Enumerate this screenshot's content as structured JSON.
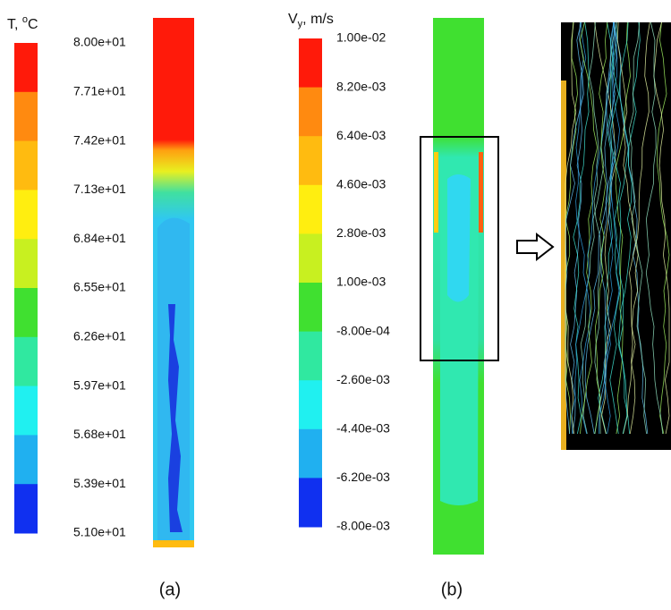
{
  "panels": [
    {
      "title_parts": [
        "T, ",
        "o",
        "C"
      ],
      "labels": [
        "8.00e+01",
        "7.71e+01",
        "7.42e+01",
        "7.13e+01",
        "6.84e+01",
        "6.55e+01",
        "6.26e+01",
        "5.97e+01",
        "5.68e+01",
        "5.39e+01",
        "5.10e+01"
      ],
      "colors": [
        "#ff1a0a",
        "#ff8a10",
        "#ffbb10",
        "#ffee10",
        "#c8f020",
        "#40e030",
        "#30e8a0",
        "#20f0f0",
        "#20b0f0",
        "#1030f0"
      ],
      "caption": "(a)"
    },
    {
      "title_parts": [
        "V",
        "y",
        ", m/s"
      ],
      "labels": [
        "1.00e-02",
        "8.20e-03",
        "6.40e-03",
        "4.60e-03",
        "2.80e-03",
        "1.00e-03",
        "-8.00e-04",
        "-2.60e-03",
        "-4.40e-03",
        "-6.20e-03",
        "-8.00e-03"
      ],
      "colors": [
        "#ff1a0a",
        "#ff8a10",
        "#ffbb10",
        "#ffee10",
        "#c8f020",
        "#40e030",
        "#30e8a0",
        "#20f0f0",
        "#20b0f0",
        "#1030f0"
      ],
      "caption": "(b)"
    }
  ]
}
